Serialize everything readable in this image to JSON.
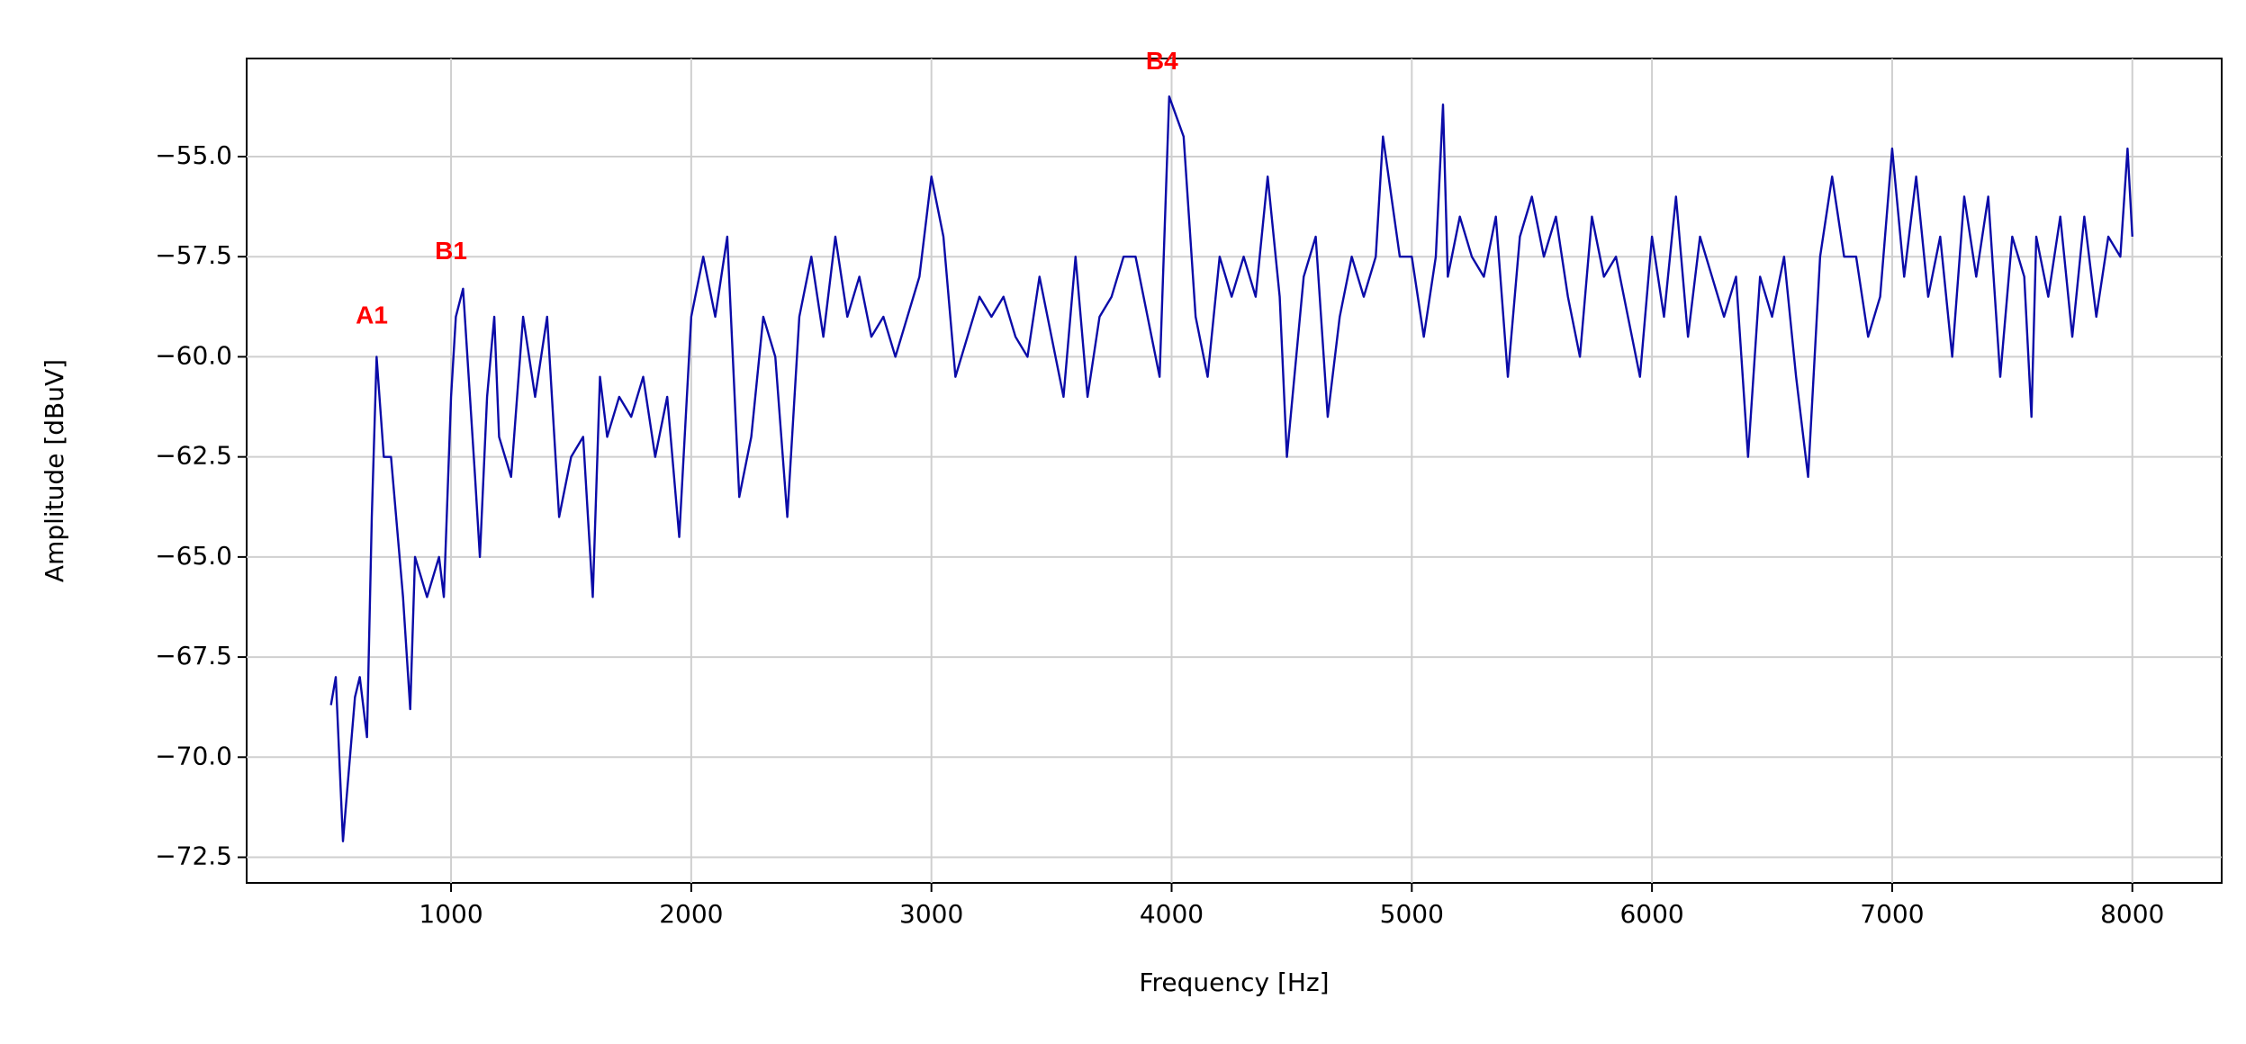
{
  "chart_data": {
    "type": "line",
    "xlabel": "Frequency [Hz]",
    "ylabel": "Amplitude [dBuV]",
    "x": [
      500,
      520,
      550,
      600,
      620,
      650,
      670,
      690,
      720,
      750,
      800,
      830,
      850,
      900,
      950,
      970,
      1000,
      1020,
      1050,
      1100,
      1120,
      1150,
      1180,
      1200,
      1250,
      1300,
      1350,
      1400,
      1450,
      1500,
      1550,
      1590,
      1620,
      1650,
      1700,
      1750,
      1800,
      1850,
      1900,
      1950,
      2000,
      2050,
      2100,
      2150,
      2200,
      2250,
      2300,
      2350,
      2400,
      2450,
      2500,
      2550,
      2600,
      2650,
      2700,
      2750,
      2800,
      2850,
      2900,
      2950,
      3000,
      3050,
      3100,
      3150,
      3200,
      3250,
      3300,
      3350,
      3400,
      3450,
      3500,
      3550,
      3600,
      3650,
      3700,
      3750,
      3800,
      3850,
      3900,
      3950,
      3990,
      4050,
      4100,
      4150,
      4200,
      4250,
      4300,
      4350,
      4400,
      4450,
      4480,
      4550,
      4600,
      4650,
      4700,
      4750,
      4800,
      4850,
      4880,
      4950,
      5000,
      5050,
      5100,
      5130,
      5150,
      5200,
      5250,
      5300,
      5350,
      5400,
      5450,
      5500,
      5550,
      5600,
      5650,
      5700,
      5750,
      5800,
      5850,
      5900,
      5950,
      6000,
      6050,
      6100,
      6150,
      6200,
      6250,
      6300,
      6350,
      6400,
      6450,
      6500,
      6550,
      6600,
      6650,
      6700,
      6750,
      6800,
      6850,
      6900,
      6950,
      7000,
      7050,
      7100,
      7150,
      7200,
      7250,
      7300,
      7350,
      7400,
      7450,
      7500,
      7550,
      7580,
      7600,
      7650,
      7700,
      7750,
      7800,
      7850,
      7900,
      7950,
      7980,
      8000
    ],
    "series": [
      {
        "color": "#0b0ba8",
        "values": [
          -68.7,
          -68.0,
          -72.1,
          -68.5,
          -68.0,
          -69.5,
          -64.0,
          -60.0,
          -62.5,
          -62.5,
          -66.0,
          -68.8,
          -65.0,
          -66.0,
          -65.0,
          -66.0,
          -61.0,
          -59.0,
          -58.3,
          -63.0,
          -65.0,
          -61.0,
          -59.0,
          -62.0,
          -63.0,
          -59.0,
          -61.0,
          -59.0,
          -64.0,
          -62.5,
          -62.0,
          -66.0,
          -60.5,
          -62.0,
          -61.0,
          -61.5,
          -60.5,
          -62.5,
          -61.0,
          -64.5,
          -59.0,
          -57.5,
          -59.0,
          -57.0,
          -63.5,
          -62.0,
          -59.0,
          -60.0,
          -64.0,
          -59.0,
          -57.5,
          -59.5,
          -57.0,
          -59.0,
          -58.0,
          -59.5,
          -59.0,
          -60.0,
          -59.0,
          -58.0,
          -55.5,
          -57.0,
          -60.5,
          -59.5,
          -58.5,
          -59.0,
          -58.5,
          -59.5,
          -60.0,
          -58.0,
          -59.5,
          -61.0,
          -57.5,
          -61.0,
          -59.0,
          -58.5,
          -57.5,
          -57.5,
          -59.0,
          -60.5,
          -53.5,
          -54.5,
          -59.0,
          -60.5,
          -57.5,
          -58.5,
          -57.5,
          -58.5,
          -55.5,
          -58.5,
          -62.5,
          -58.0,
          -57.0,
          -61.5,
          -59.0,
          -57.5,
          -58.5,
          -57.5,
          -54.5,
          -57.5,
          -57.5,
          -59.5,
          -57.5,
          -53.7,
          -58.0,
          -56.5,
          -57.5,
          -58.0,
          -56.5,
          -60.5,
          -57.0,
          -56.0,
          -57.5,
          -56.5,
          -58.5,
          -60.0,
          -56.5,
          -58.0,
          -57.5,
          -59.0,
          -60.5,
          -57.0,
          -59.0,
          -56.0,
          -59.5,
          -57.0,
          -58.0,
          -59.0,
          -58.0,
          -62.5,
          -58.0,
          -59.0,
          -57.5,
          -60.5,
          -63.0,
          -57.5,
          -55.5,
          -57.5,
          -57.5,
          -59.5,
          -58.5,
          -54.8,
          -58.0,
          -55.5,
          -58.5,
          -57.0,
          -60.0,
          -56.0,
          -58.0,
          -56.0,
          -60.5,
          -57.0,
          -58.0,
          -61.5,
          -57.0,
          -58.5,
          -56.5,
          -59.5,
          -56.5,
          -59.0,
          -57.0,
          -57.5,
          -54.8,
          -57.0
        ]
      }
    ],
    "xlim": [
      149,
      8372
    ],
    "ylim": [
      -73.14,
      -52.55
    ],
    "xticks": [
      1000,
      2000,
      3000,
      4000,
      5000,
      6000,
      7000,
      8000
    ],
    "yticks": [
      {
        "value": -55,
        "label": "−55.0"
      },
      {
        "value": -57.5,
        "label": "−57.5"
      },
      {
        "value": -60,
        "label": "−60.0"
      },
      {
        "value": -62.5,
        "label": "−62.5"
      },
      {
        "value": -65,
        "label": "−65.0"
      },
      {
        "value": -67.5,
        "label": "−67.5"
      },
      {
        "value": -70,
        "label": "−70.0"
      },
      {
        "value": -72.5,
        "label": "−72.5"
      }
    ],
    "grid": true,
    "annotations": [
      {
        "text": "A1",
        "x": 670,
        "y": -59.0,
        "color": "#ff0000"
      },
      {
        "text": "B1",
        "x": 1000,
        "y": -57.4,
        "color": "#ff0000"
      },
      {
        "text": "B4",
        "x": 3960,
        "y": -52.65,
        "color": "#ff0000"
      }
    ]
  }
}
